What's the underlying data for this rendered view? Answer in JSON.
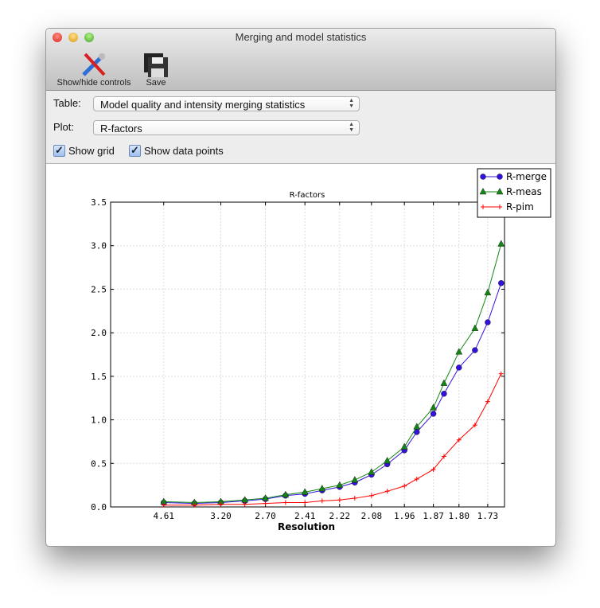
{
  "window": {
    "title": "Merging and model statistics"
  },
  "toolbar": {
    "show_hide": "Show/hide controls",
    "save": "Save"
  },
  "controls": {
    "table_label": "Table:",
    "table_value": "Model quality and intensity merging statistics",
    "plot_label": "Plot:",
    "plot_value": "R-factors",
    "show_grid": "Show grid",
    "show_grid_checked": true,
    "show_points": "Show data points",
    "show_points_checked": true
  },
  "chart_data": {
    "type": "line",
    "title": "R-factors",
    "xlabel": "Resolution",
    "ylabel": "",
    "x_scale": "1/d^2 (labels show resolution d)",
    "xlim_resolution": [
      "inf",
      1.69
    ],
    "ylim": [
      0,
      3.5
    ],
    "grid": true,
    "legend": "top-right",
    "yticks": [
      "0.0",
      "0.5",
      "1.0",
      "1.5",
      "2.0",
      "2.5",
      "3.0",
      "3.5"
    ],
    "xticks": [
      "4.61",
      "3.20",
      "2.70",
      "2.41",
      "2.22",
      "2.08",
      "1.96",
      "1.87",
      "1.80",
      "1.73"
    ],
    "x": [
      4.61,
      3.67,
      3.2,
      2.9,
      2.7,
      2.54,
      2.41,
      2.31,
      2.22,
      2.15,
      2.08,
      2.02,
      1.96,
      1.92,
      1.87,
      1.84,
      1.8,
      1.76,
      1.73,
      1.7
    ],
    "series": [
      {
        "name": "R-merge",
        "color": "#3311dd",
        "marker": "circle",
        "values": [
          0.05,
          0.04,
          0.05,
          0.07,
          0.09,
          0.13,
          0.15,
          0.19,
          0.23,
          0.28,
          0.37,
          0.49,
          0.65,
          0.86,
          1.07,
          1.3,
          1.6,
          1.8,
          2.12,
          2.57
        ]
      },
      {
        "name": "R-meas",
        "color": "#118811",
        "marker": "triangle",
        "values": [
          0.06,
          0.05,
          0.06,
          0.08,
          0.1,
          0.14,
          0.17,
          0.21,
          0.25,
          0.31,
          0.4,
          0.53,
          0.69,
          0.92,
          1.14,
          1.42,
          1.78,
          2.05,
          2.46,
          3.02
        ]
      },
      {
        "name": "R-pim",
        "color": "#ff0000",
        "marker": "plus",
        "values": [
          0.02,
          0.02,
          0.03,
          0.03,
          0.04,
          0.05,
          0.05,
          0.07,
          0.08,
          0.1,
          0.13,
          0.18,
          0.24,
          0.32,
          0.43,
          0.58,
          0.77,
          0.94,
          1.21,
          1.53
        ]
      }
    ]
  }
}
